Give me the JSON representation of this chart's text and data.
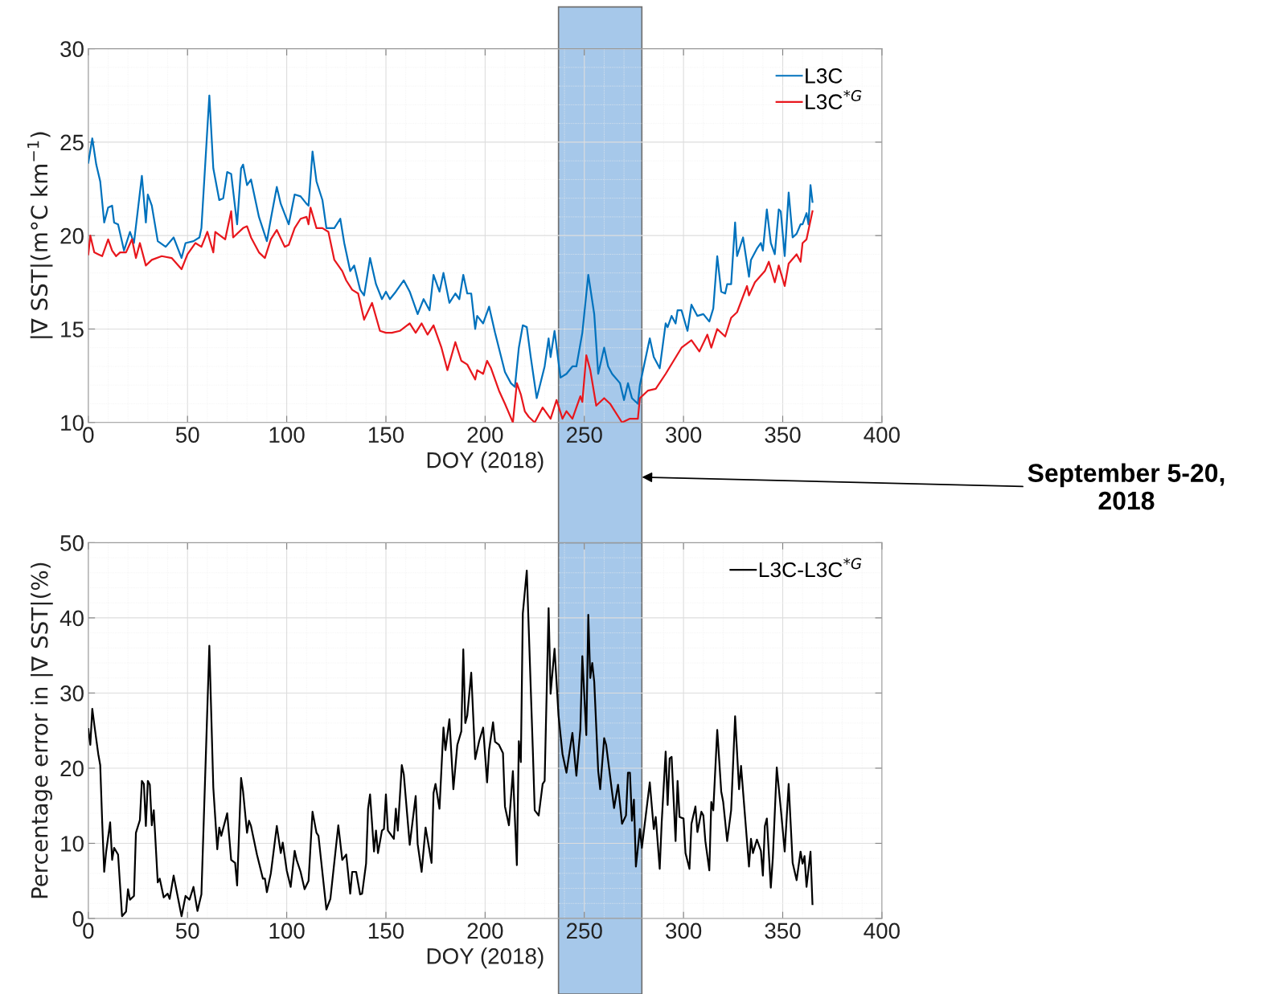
{
  "chart_data": [
    {
      "type": "line",
      "xlabel": "DOY (2018)",
      "ylabel": "|∇ SST|(m°C km$^{−1}$)",
      "xlim": [
        0,
        400
      ],
      "xticks": [
        0,
        50,
        100,
        150,
        200,
        250,
        300,
        350,
        400
      ],
      "ylim": [
        10,
        30
      ],
      "yticks": [
        10,
        15,
        20,
        25,
        30
      ],
      "grid": true,
      "legend": "top right",
      "bands": [
        {
          "axis": "x",
          "from": 237,
          "to": 279,
          "label": "September 5-20,\n2018",
          "color": "#a6c8ea"
        }
      ],
      "series": [
        {
          "name": "L3C",
          "color": "#0072bd",
          "x": [
            0,
            2,
            4,
            6,
            8,
            10,
            12,
            13,
            15,
            18,
            21,
            23,
            25,
            27,
            29,
            30,
            32,
            35,
            39,
            43,
            47,
            49,
            53,
            56,
            57,
            61,
            63,
            66,
            68,
            70,
            72,
            75,
            77,
            78,
            80,
            82,
            86,
            90,
            92,
            95,
            97,
            101,
            104,
            107,
            110,
            111,
            113,
            115,
            118,
            120,
            124,
            127,
            129,
            132,
            134,
            137,
            139,
            142,
            145,
            148,
            150,
            152,
            155,
            159,
            162,
            166,
            169,
            172,
            174,
            177,
            179,
            182,
            185,
            187,
            189,
            191,
            193,
            195,
            196,
            199,
            202,
            205,
            210,
            213,
            215,
            217,
            219,
            221,
            223,
            226,
            230,
            232,
            233,
            235,
            238,
            241,
            244,
            246,
            249,
            252,
            255,
            257,
            260,
            262,
            264,
            268,
            270,
            272,
            274,
            277,
            278,
            283,
            285,
            288,
            291,
            292,
            294,
            296,
            297,
            299,
            302,
            304,
            307,
            310,
            313,
            315,
            317,
            319,
            321,
            322,
            324,
            326,
            327,
            330,
            333,
            334,
            337,
            339,
            340,
            342,
            344,
            346,
            348,
            349,
            351,
            353,
            355,
            357,
            359,
            360,
            362,
            363,
            364,
            365
          ],
          "values": [
            23.9,
            25.2,
            23.8,
            22.9,
            20.7,
            21.5,
            21.6,
            20.7,
            20.6,
            19.2,
            20.2,
            19.6,
            21.4,
            23.2,
            20.7,
            22.2,
            21.6,
            19.7,
            19.4,
            19.9,
            18.8,
            19.6,
            19.7,
            19.9,
            20.4,
            27.5,
            23.6,
            21.9,
            22.0,
            23.4,
            23.3,
            20.6,
            23.6,
            23.8,
            22.7,
            23.0,
            21.0,
            19.7,
            20.9,
            22.6,
            21.7,
            20.6,
            22.2,
            22.1,
            21.7,
            21.6,
            24.5,
            22.9,
            21.9,
            20.4,
            20.4,
            20.9,
            19.6,
            18.1,
            18.4,
            17.1,
            16.8,
            18.8,
            17.4,
            16.6,
            17.0,
            16.6,
            17.0,
            17.6,
            17.0,
            15.8,
            16.6,
            16.0,
            17.9,
            17.0,
            18.0,
            16.4,
            16.9,
            16.6,
            17.9,
            16.9,
            16.9,
            15.0,
            15.7,
            15.3,
            16.2,
            14.8,
            12.7,
            12.1,
            11.9,
            14.0,
            15.2,
            15.1,
            13.5,
            11.3,
            13.0,
            14.5,
            13.5,
            14.9,
            12.4,
            12.6,
            13.0,
            13.0,
            14.8,
            17.9,
            15.8,
            12.6,
            14.0,
            13.0,
            12.6,
            12.1,
            11.2,
            12.1,
            11.3,
            11.0,
            12.0,
            14.5,
            13.5,
            12.9,
            15.3,
            15.1,
            15.7,
            15.3,
            16.0,
            16.0,
            14.9,
            16.3,
            15.7,
            15.8,
            15.4,
            16.1,
            18.9,
            17.0,
            16.9,
            17.4,
            17.4,
            20.7,
            18.9,
            19.9,
            17.8,
            18.7,
            19.3,
            19.6,
            19.2,
            21.4,
            19.6,
            19.0,
            21.4,
            21.3,
            18.9,
            22.3,
            19.9,
            20.1,
            20.6,
            20.6,
            21.2,
            20.6,
            22.7,
            21.8
          ]
        },
        {
          "name": "L3C$^{*G}$",
          "color": "#e8171d",
          "x": [
            0,
            1,
            3,
            5,
            7,
            10,
            12,
            14,
            16,
            19,
            22,
            24,
            26,
            29,
            32,
            37,
            42,
            47,
            50,
            54,
            57,
            60,
            63,
            64,
            69,
            72,
            73,
            78,
            80,
            82,
            86,
            89,
            92,
            95,
            99,
            101,
            104,
            107,
            110,
            111,
            112,
            115,
            118,
            121,
            124,
            128,
            130,
            133,
            136,
            139,
            143,
            147,
            150,
            153,
            157,
            162,
            165,
            168,
            171,
            174,
            178,
            181,
            185,
            188,
            191,
            195,
            196,
            199,
            201,
            203,
            207,
            210,
            214,
            216,
            218,
            220,
            222,
            225,
            229,
            233,
            236,
            239,
            241,
            244,
            248,
            249,
            251,
            253,
            256,
            260,
            263,
            269,
            273,
            277,
            278,
            282,
            286,
            291,
            295,
            299,
            304,
            308,
            312,
            314,
            317,
            321,
            324,
            327,
            332,
            333,
            336,
            341,
            343,
            346,
            348,
            351,
            353,
            357,
            359,
            360,
            362,
            365
          ],
          "values": [
            19.0,
            20.0,
            19.1,
            19.0,
            18.9,
            19.8,
            19.2,
            18.9,
            19.1,
            19.1,
            19.8,
            18.8,
            19.6,
            18.4,
            18.7,
            18.9,
            18.8,
            18.2,
            19.0,
            19.6,
            19.4,
            20.2,
            19.1,
            20.2,
            19.8,
            21.3,
            19.9,
            20.4,
            20.5,
            19.9,
            19.1,
            18.8,
            19.8,
            20.3,
            19.4,
            19.5,
            20.4,
            20.9,
            21.0,
            20.6,
            21.5,
            20.4,
            20.4,
            20.2,
            18.7,
            18.1,
            17.6,
            17.1,
            16.9,
            15.5,
            16.4,
            14.9,
            14.8,
            14.8,
            14.9,
            15.3,
            14.8,
            15.3,
            14.7,
            15.2,
            14.0,
            12.8,
            14.3,
            13.3,
            13.1,
            12.3,
            12.8,
            12.6,
            13.3,
            12.9,
            11.7,
            11.0,
            10.0,
            12.1,
            11.5,
            10.6,
            10.3,
            10.0,
            10.8,
            10.2,
            11.2,
            10.2,
            10.6,
            10.2,
            11.4,
            11.1,
            13.6,
            12.8,
            10.9,
            11.3,
            11.0,
            10.0,
            10.2,
            10.2,
            11.3,
            11.7,
            11.8,
            12.6,
            13.3,
            14.0,
            14.4,
            13.8,
            14.7,
            14.0,
            15.0,
            14.6,
            15.6,
            15.9,
            17.3,
            16.8,
            17.5,
            18.1,
            18.6,
            17.5,
            18.4,
            17.3,
            18.5,
            19.0,
            18.6,
            19.6,
            19.8,
            21.3
          ]
        }
      ]
    },
    {
      "type": "line",
      "xlabel": "DOY (2018)",
      "ylabel": "Percentage error in |∇ SST|(%)",
      "xlim": [
        0,
        400
      ],
      "xticks": [
        0,
        50,
        100,
        150,
        200,
        250,
        300,
        350,
        400
      ],
      "ylim": [
        0,
        50
      ],
      "yticks": [
        0,
        10,
        20,
        30,
        40,
        50
      ],
      "grid": true,
      "legend": "top right",
      "bands": [
        {
          "axis": "x",
          "from": 237,
          "to": 279,
          "color": "#a6c8ea"
        }
      ],
      "series": [
        {
          "name": "L3C-L3C$^{*G}$",
          "color": "#000000",
          "x": [
            0,
            1,
            2,
            3,
            5,
            6,
            7,
            8,
            9,
            11,
            12,
            13,
            15,
            17,
            19,
            20,
            21,
            23,
            24,
            26,
            27,
            28,
            29,
            30,
            31,
            32,
            33,
            35,
            36,
            38,
            40,
            41,
            43,
            47,
            49,
            51,
            53,
            55,
            57,
            61,
            63,
            65,
            66,
            67,
            70,
            72,
            74,
            75,
            77,
            78,
            80,
            81,
            82,
            85,
            88,
            89,
            90,
            92,
            95,
            97,
            98,
            100,
            102,
            104,
            105,
            107,
            109,
            111,
            113,
            115,
            116,
            120,
            122,
            126,
            128,
            130,
            132,
            133,
            135,
            137,
            138,
            140,
            141,
            142,
            144,
            145,
            146,
            148,
            149,
            150,
            151,
            154,
            155,
            156,
            158,
            159,
            162,
            165,
            166,
            168,
            170,
            173,
            174,
            175,
            177,
            179,
            180,
            182,
            184,
            186,
            188,
            189,
            190,
            191,
            193,
            195,
            197,
            199,
            201,
            202,
            204,
            205,
            207,
            209,
            210,
            212,
            214,
            216,
            217,
            218,
            219,
            221,
            224,
            225,
            227,
            229,
            230,
            232,
            233,
            235,
            237,
            239,
            241,
            244,
            246,
            248,
            249,
            251,
            252,
            253,
            254,
            255,
            257,
            258,
            260,
            261,
            265,
            267,
            269,
            271,
            272,
            273,
            274,
            275,
            276,
            278,
            279,
            283,
            285,
            286,
            288,
            289,
            291,
            292,
            293,
            294,
            296,
            297,
            298,
            300,
            301,
            303,
            304,
            306,
            307,
            309,
            310,
            311,
            313,
            314,
            315,
            317,
            319,
            320,
            322,
            324,
            326,
            328,
            329,
            333,
            334,
            335,
            337,
            339,
            340,
            341,
            342,
            344,
            345,
            347,
            349,
            351,
            353,
            355,
            357,
            359,
            360,
            361,
            362,
            364,
            365
          ],
          "values": [
            25.2,
            23.1,
            27.9,
            25.8,
            21.9,
            20.4,
            12.8,
            6.2,
            8.9,
            12.8,
            7.8,
            9.4,
            8.5,
            0.3,
            0.9,
            3.9,
            2.5,
            3.0,
            11.4,
            13.1,
            18.3,
            17.9,
            12.3,
            18.3,
            17.8,
            12.4,
            14.4,
            4.8,
            5.3,
            2.8,
            3.3,
            2.6,
            5.7,
            0.3,
            3.0,
            2.5,
            4.2,
            1.0,
            3.2,
            36.3,
            17.4,
            9.2,
            12.1,
            11.0,
            14.0,
            7.8,
            7.4,
            4.4,
            18.7,
            16.9,
            11.4,
            13.0,
            12.3,
            8.5,
            5.3,
            5.3,
            3.5,
            6.0,
            12.3,
            8.7,
            10.1,
            6.4,
            4.2,
            9.0,
            7.8,
            6.2,
            3.9,
            5.0,
            14.2,
            11.4,
            11.0,
            1.2,
            2.6,
            12.4,
            7.8,
            8.5,
            3.3,
            6.2,
            6.2,
            3.2,
            3.3,
            7.3,
            14.6,
            16.5,
            8.9,
            11.7,
            8.7,
            11.7,
            11.9,
            16.5,
            11.7,
            10.6,
            14.6,
            11.7,
            20.4,
            19.2,
            9.8,
            16.3,
            9.9,
            6.2,
            12.1,
            7.4,
            16.7,
            17.9,
            14.6,
            25.4,
            22.4,
            26.5,
            17.2,
            23.1,
            24.9,
            35.8,
            26.0,
            27.0,
            32.7,
            21.2,
            23.6,
            25.4,
            18.1,
            22.4,
            26.1,
            23.5,
            23.1,
            22.0,
            14.9,
            12.4,
            19.6,
            7.1,
            23.6,
            20.8,
            40.6,
            46.3,
            22.8,
            14.4,
            13.7,
            17.9,
            18.3,
            41.3,
            29.9,
            35.9,
            27.0,
            21.9,
            19.4,
            24.7,
            19.0,
            25.2,
            34.9,
            24.4,
            40.4,
            32.0,
            34.0,
            31.5,
            19.6,
            17.2,
            24.0,
            23.1,
            14.7,
            17.8,
            12.6,
            13.7,
            19.4,
            19.4,
            13.0,
            15.8,
            6.9,
            11.9,
            9.4,
            18.1,
            11.9,
            13.5,
            6.6,
            12.8,
            22.2,
            15.1,
            21.3,
            21.5,
            10.3,
            18.3,
            13.5,
            13.3,
            8.7,
            6.6,
            12.6,
            14.9,
            11.5,
            14.2,
            13.7,
            10.3,
            6.4,
            15.5,
            14.4,
            25.1,
            16.9,
            15.5,
            10.3,
            14.4,
            26.9,
            17.2,
            20.3,
            6.9,
            10.6,
            8.7,
            10.5,
            9.0,
            5.7,
            12.3,
            13.3,
            4.1,
            8.0,
            20.1,
            14.7,
            8.9,
            17.9,
            7.4,
            5.1,
            8.9,
            7.3,
            8.3,
            4.2,
            8.9,
            1.9
          ]
        }
      ]
    }
  ]
}
